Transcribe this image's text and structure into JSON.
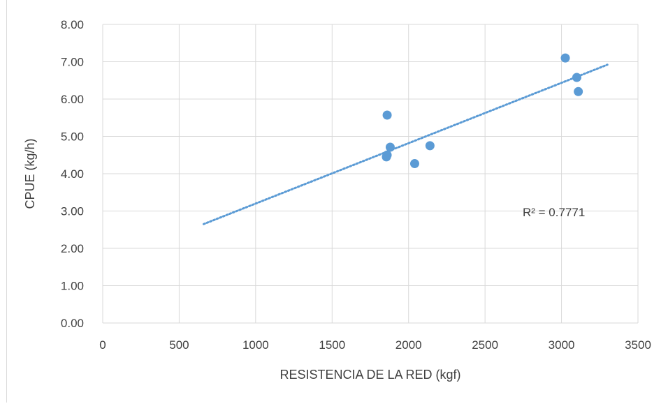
{
  "chart_data": {
    "type": "scatter",
    "xlabel": "RESISTENCIA DE LA RED (kgf)",
    "ylabel": "CPUE (kg/h)",
    "xlim": [
      0,
      3500
    ],
    "ylim": [
      0,
      8
    ],
    "x_ticks": [
      0,
      500,
      1000,
      1500,
      2000,
      2500,
      3000,
      3500
    ],
    "x_tick_labels": [
      "0",
      "500",
      "1000",
      "1500",
      "2000",
      "2500",
      "3000",
      "3500"
    ],
    "y_ticks": [
      0,
      1,
      2,
      3,
      4,
      5,
      6,
      7,
      8
    ],
    "y_tick_labels": [
      "0.00",
      "1.00",
      "2.00",
      "3.00",
      "4.00",
      "5.00",
      "6.00",
      "7.00",
      "8.00"
    ],
    "grid": true,
    "series": [
      {
        "points": [
          {
            "x": 1860,
            "y": 5.57
          },
          {
            "x": 1880,
            "y": 4.71
          },
          {
            "x": 1855,
            "y": 4.45
          },
          {
            "x": 1860,
            "y": 4.5
          },
          {
            "x": 2040,
            "y": 4.27
          },
          {
            "x": 2140,
            "y": 4.75
          },
          {
            "x": 3025,
            "y": 7.1
          },
          {
            "x": 3100,
            "y": 6.58
          },
          {
            "x": 3110,
            "y": 6.2
          }
        ]
      }
    ],
    "trendline": {
      "type": "linear",
      "x_range": [
        660,
        3300
      ],
      "y_range": [
        2.65,
        6.92
      ]
    },
    "annotation": "R² = 0.7771",
    "colors": {
      "marker": "#5b9bd5",
      "trendline": "#5b9bd5",
      "grid": "#d9d9d9",
      "text": "#404040"
    }
  }
}
